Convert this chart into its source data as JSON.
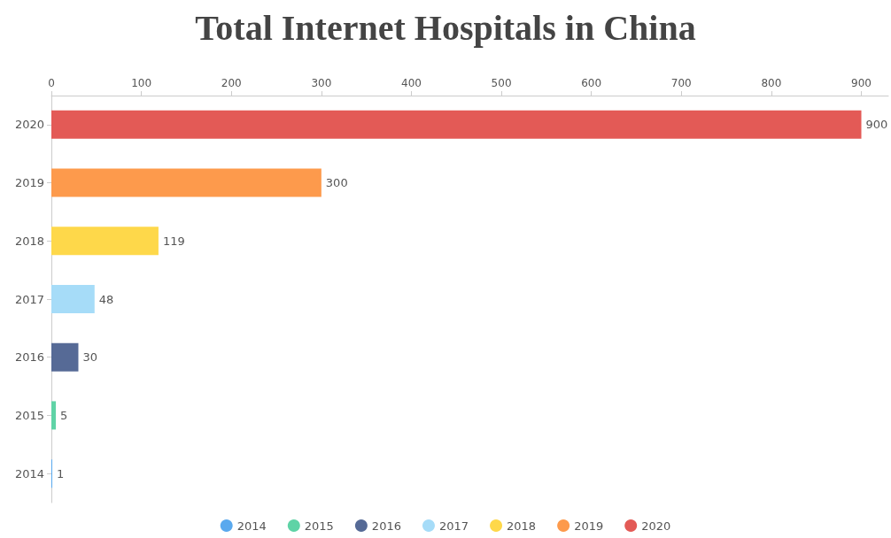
{
  "chart_data": {
    "type": "bar",
    "title": "Total Internet Hospitals in China",
    "orientation": "horizontal",
    "stacked": true,
    "categories": [
      "2020",
      "2019",
      "2018",
      "2017",
      "2016",
      "2015",
      "2014"
    ],
    "series": [
      {
        "name": "2014",
        "color": "#5aa9ee",
        "values": [
          null,
          null,
          null,
          null,
          null,
          null,
          1
        ]
      },
      {
        "name": "2015",
        "color": "#5fd3a6",
        "values": [
          null,
          null,
          null,
          null,
          null,
          5,
          null
        ]
      },
      {
        "name": "2016",
        "color": "#566a96",
        "values": [
          null,
          null,
          null,
          null,
          30,
          null,
          null
        ]
      },
      {
        "name": "2017",
        "color": "#a6dcf8",
        "values": [
          null,
          null,
          null,
          48,
          null,
          null,
          null
        ]
      },
      {
        "name": "2018",
        "color": "#fed84a",
        "values": [
          null,
          null,
          119,
          null,
          null,
          null,
          null
        ]
      },
      {
        "name": "2019",
        "color": "#fd9a4c",
        "values": [
          null,
          300,
          null,
          null,
          null,
          null,
          null
        ]
      },
      {
        "name": "2020",
        "color": "#e35a56",
        "values": [
          900,
          null,
          null,
          null,
          null,
          null,
          null
        ]
      }
    ],
    "xlim": [
      0,
      930
    ],
    "xticks": [
      0,
      100,
      200,
      300,
      400,
      500,
      600,
      700,
      800,
      900
    ],
    "data_labels": true,
    "grid": false,
    "legend": "bottom"
  }
}
